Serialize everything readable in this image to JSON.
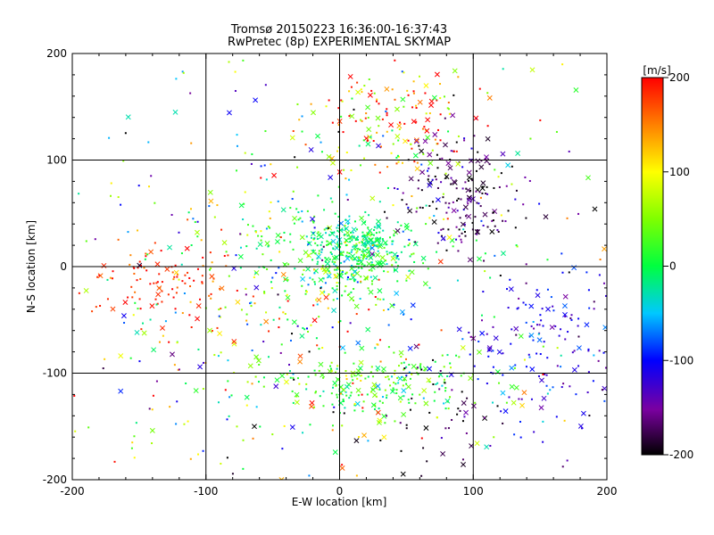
{
  "chart_data": {
    "type": "scatter",
    "title": "Tromsø 20150223 16:36:00-16:37:43",
    "subtitle": "RwPretec (8p) EXPERIMENTAL SKYMAP",
    "xlabel": "E-W location [km]",
    "ylabel": "N-S location [km]",
    "xlim": [
      -200,
      200
    ],
    "ylim": [
      -200,
      200
    ],
    "xticks": [
      "-200",
      "-100",
      "0",
      "100",
      "200"
    ],
    "yticks": [
      "-200",
      "-100",
      "0",
      "100",
      "200"
    ],
    "grid": true,
    "colorbar": {
      "label": "[m/s]",
      "range": [
        -200,
        200
      ],
      "ticks": [
        "200",
        "100",
        "0",
        "-100",
        "-200"
      ]
    },
    "clusters": [
      {
        "cx": 10,
        "cy": 5,
        "sx": 20,
        "sy": 18,
        "n": 260,
        "v": 10,
        "vs": 35
      },
      {
        "cx": 15,
        "cy": 25,
        "sx": 15,
        "sy": 10,
        "n": 120,
        "v": -15,
        "vs": 15
      },
      {
        "cx": 30,
        "cy": -110,
        "sx": 40,
        "sy": 15,
        "n": 200,
        "v": 20,
        "vs": 30
      },
      {
        "cx": 90,
        "cy": 70,
        "sx": 22,
        "sy": 28,
        "n": 180,
        "v": -170,
        "vs": 35
      },
      {
        "cx": 40,
        "cy": 140,
        "sx": 30,
        "sy": 28,
        "n": 150,
        "v": 130,
        "vs": 70
      },
      {
        "cx": 160,
        "cy": -80,
        "sx": 35,
        "sy": 40,
        "n": 180,
        "v": -110,
        "vs": 25
      },
      {
        "cx": -130,
        "cy": -10,
        "sx": 30,
        "sy": 18,
        "n": 100,
        "v": 180,
        "vs": 25
      },
      {
        "cx": -40,
        "cy": 20,
        "sx": 30,
        "sy": 20,
        "n": 80,
        "v": 10,
        "vs": 30
      },
      {
        "cx": 80,
        "cy": -150,
        "sx": 30,
        "sy": 30,
        "n": 50,
        "v": -185,
        "vs": 20
      },
      {
        "cx": -40,
        "cy": -80,
        "sx": 60,
        "sy": 60,
        "n": 150,
        "v": 70,
        "vs": 90
      },
      {
        "cx": 0,
        "cy": 0,
        "sx": 110,
        "sy": 110,
        "n": 450,
        "v": 0,
        "vs": 110
      }
    ]
  }
}
